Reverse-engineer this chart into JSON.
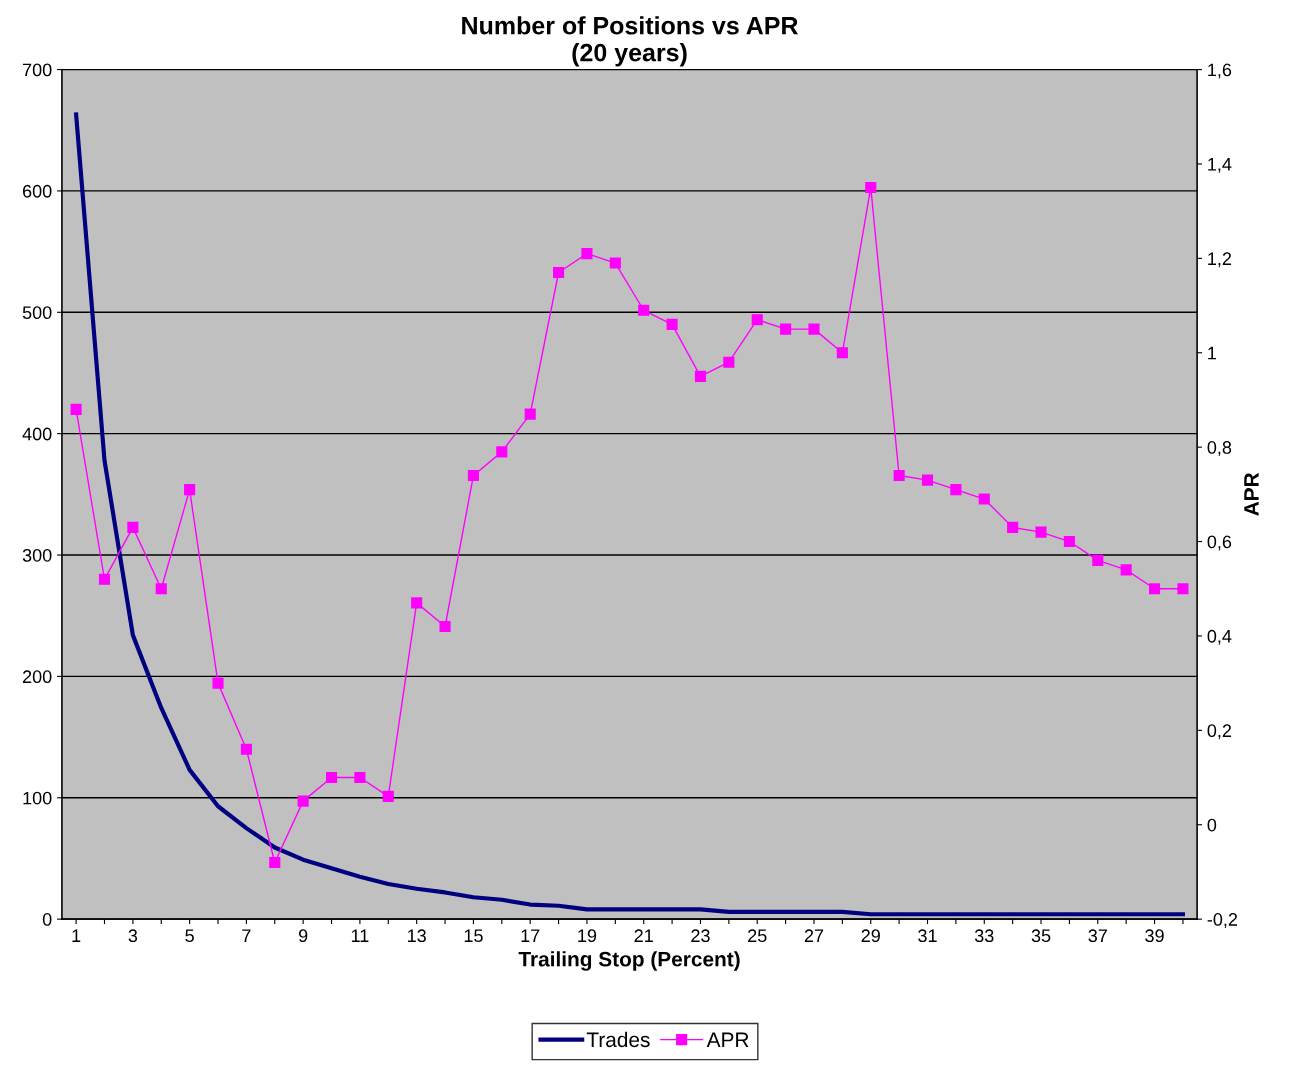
{
  "chart_data": {
    "type": "line",
    "title": "Number of Positions vs APR",
    "subtitle": "(20 years)",
    "xlabel": "Trailing Stop (Percent)",
    "y2label": "APR",
    "categories": [
      "1",
      null,
      "3",
      null,
      "5",
      null,
      "7",
      null,
      "9",
      null,
      "11",
      null,
      "13",
      null,
      "15",
      null,
      "17",
      null,
      "19",
      null,
      "21",
      null,
      "23",
      null,
      "25",
      null,
      "27",
      null,
      "29",
      null,
      "31",
      null,
      "33",
      null,
      "35",
      null,
      "37",
      null,
      "39",
      null
    ],
    "series": [
      {
        "name": "Trades",
        "color": "#000080",
        "marker": "none",
        "values": [
          663,
          378,
          234,
          174,
          123,
          93,
          75,
          59,
          49,
          42,
          35,
          29,
          25,
          22,
          18,
          16,
          12,
          11,
          8,
          8,
          8,
          8,
          8,
          6,
          6,
          6,
          6,
          6,
          4,
          4,
          4,
          4,
          4,
          4,
          4,
          4,
          4,
          4,
          4,
          4
        ]
      },
      {
        "name": "APR",
        "color": "#ff00ff",
        "marker": "square",
        "axis": "y2",
        "values": [
          0.88,
          0.52,
          0.63,
          0.5,
          0.71,
          0.3,
          0.16,
          -0.08,
          0.05,
          0.1,
          0.1,
          0.06,
          0.47,
          0.42,
          0.74,
          0.79,
          0.87,
          1.17,
          1.21,
          1.19,
          1.09,
          1.06,
          0.95,
          0.98,
          1.07,
          1.05,
          1.05,
          1.0,
          1.35,
          0.74,
          0.73,
          0.71,
          0.69,
          0.63,
          0.62,
          0.6,
          0.56,
          0.54,
          0.5,
          0.5
        ]
      }
    ],
    "ylim": [
      0,
      700
    ],
    "yticks": [
      0,
      100,
      200,
      300,
      400,
      500,
      600,
      700
    ],
    "y2lim": [
      -0.2,
      1.6
    ],
    "y2ticks": [
      {
        "value": -0.2,
        "label": "-0,2"
      },
      0,
      {
        "value": 0.2,
        "label": "0,2"
      },
      {
        "value": 0.4,
        "label": "0,4"
      },
      {
        "value": 0.6,
        "label": "0,6"
      },
      {
        "value": 0.8,
        "label": "0,8"
      },
      1,
      {
        "value": 1.2,
        "label": "1,2"
      },
      {
        "value": 1.4,
        "label": "1,4"
      },
      {
        "value": 1.6,
        "label": "1,6"
      }
    ],
    "grid": "y",
    "legend": "bottom"
  }
}
